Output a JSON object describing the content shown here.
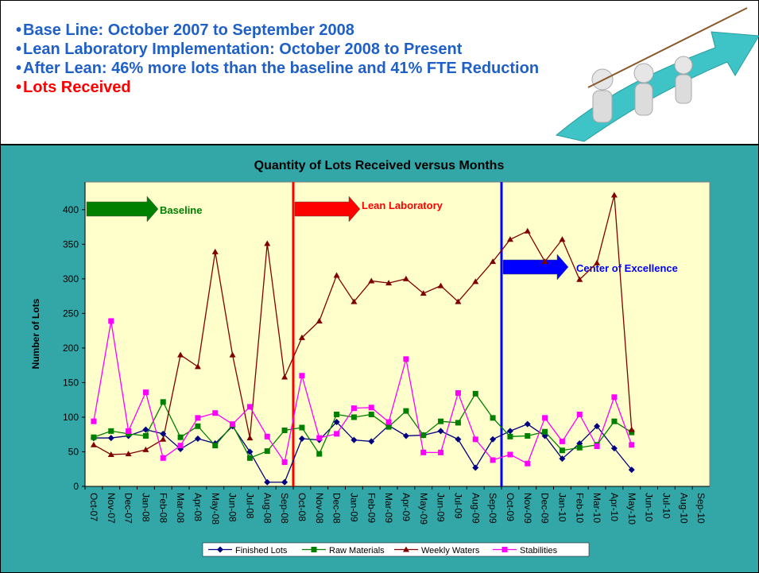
{
  "header": {
    "bullets": [
      {
        "text": "Base Line: October 2007 to September 2008",
        "color": "#1f5fc8"
      },
      {
        "text": "Lean Laboratory Implementation: October 2008 to Present",
        "color": "#1f5fc8"
      },
      {
        "text": "After Lean: 46% more lots than the baseline and 41% FTE Reduction",
        "color": "#1f5fc8"
      },
      {
        "text": "Lots Received",
        "color": "#ff0000"
      }
    ]
  },
  "chart_data": {
    "type": "line",
    "title": "Quantity of Lots Received versus Months",
    "y_label": "Number of Lots",
    "categories": [
      "Oct-07",
      "Nov-07",
      "Dec-07",
      "Jan-08",
      "Feb-08",
      "Mar-08",
      "Apr-08",
      "May-08",
      "Jun-08",
      "Jul-08",
      "Aug-08",
      "Sep-08",
      "Oct-08",
      "Nov-08",
      "Dec-08",
      "Jan-09",
      "Feb-09",
      "Mar-09",
      "Apr-09",
      "May-09",
      "Jun-09",
      "Jul-09",
      "Aug-09",
      "Sep-09",
      "Oct-09",
      "Nov-09",
      "Dec-09",
      "Jan-10",
      "Feb-10",
      "Mar-10",
      "Apr-10",
      "May-10",
      "Jun-10",
      "Jul-10",
      "Aug-10",
      "Sep-10"
    ],
    "series": [
      {
        "name": "Finished Lots",
        "color": "#000080",
        "marker": "diamond",
        "values": [
          70,
          70,
          73,
          82,
          76,
          54,
          69,
          62,
          87,
          50,
          6,
          6,
          69,
          67,
          93,
          67,
          65,
          88,
          73,
          74,
          80,
          68,
          27,
          68,
          80,
          90,
          73,
          40,
          62,
          87,
          55,
          24,
          null,
          null,
          null,
          null
        ]
      },
      {
        "name": "Raw Materials",
        "color": "#008000",
        "marker": "square",
        "values": [
          71,
          80,
          76,
          73,
          122,
          71,
          87,
          59,
          89,
          41,
          51,
          81,
          85,
          47,
          104,
          100,
          104,
          86,
          109,
          74,
          94,
          92,
          134,
          99,
          72,
          73,
          79,
          52,
          56,
          60,
          94,
          78,
          null,
          null,
          null,
          null
        ]
      },
      {
        "name": "Weekly Waters",
        "color": "#800000",
        "marker": "triangle",
        "values": [
          60,
          46,
          47,
          53,
          68,
          190,
          173,
          339,
          190,
          70,
          351,
          158,
          215,
          239,
          305,
          267,
          297,
          294,
          300,
          279,
          290,
          267,
          296,
          325,
          357,
          369,
          325,
          357,
          299,
          323,
          421,
          82,
          null,
          null,
          null,
          null
        ]
      },
      {
        "name": "Stabilities",
        "color": "#ff00ff",
        "marker": "square",
        "values": [
          94,
          239,
          80,
          136,
          41,
          59,
          99,
          106,
          90,
          115,
          72,
          35,
          160,
          70,
          76,
          113,
          114,
          93,
          184,
          49,
          49,
          135,
          68,
          38,
          46,
          33,
          99,
          65,
          104,
          58,
          129,
          60,
          null,
          null,
          null,
          null
        ]
      }
    ],
    "ylim": [
      0,
      440
    ],
    "yticks": [
      0,
      50,
      100,
      150,
      200,
      250,
      300,
      350,
      400
    ],
    "legend": "bottom",
    "annotations": [
      {
        "text": "Baseline",
        "color": "#008000",
        "start": "Oct-07"
      },
      {
        "text": "Lean Laboratory",
        "color": "#ff0000",
        "start": "Oct-08"
      },
      {
        "text": "Center of Excellence",
        "color": "#0000ff",
        "start": "Oct-09"
      }
    ]
  }
}
